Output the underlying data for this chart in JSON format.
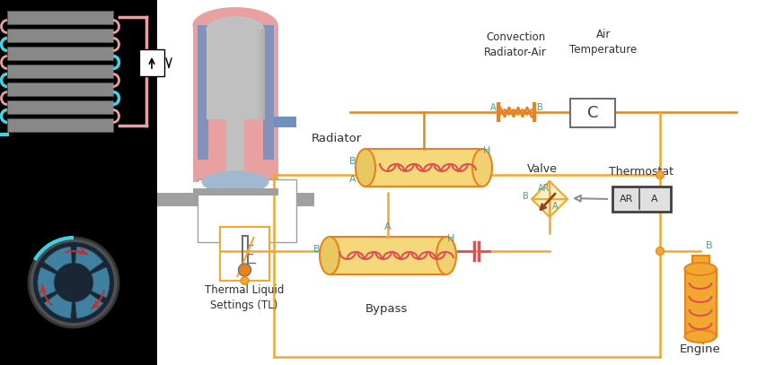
{
  "bg_color": "#000000",
  "diagram_bg": "#ffffff",
  "orange_color": "#E8821E",
  "orange_light": "#F0A830",
  "red_color": "#E05050",
  "pink_color": "#E8A0A0",
  "pink_dark": "#C87878",
  "cyan_color": "#40D0E0",
  "gray_color": "#909090",
  "gray_light": "#C0C0C0",
  "dark_gray": "#606060",
  "teal_color": "#40A0A0",
  "brown_color": "#805050",
  "blue_color": "#7090C0",
  "labels": {
    "radiator": "Radiator",
    "convection": "Convection\nRadiator-Air",
    "air_temp": "Air\nTemperature",
    "valve": "Valve",
    "thermostat": "Thermostat",
    "bypass": "Bypass",
    "engine": "Engine",
    "thermal_liquid": "Thermal Liquid\nSettings (TL)"
  }
}
